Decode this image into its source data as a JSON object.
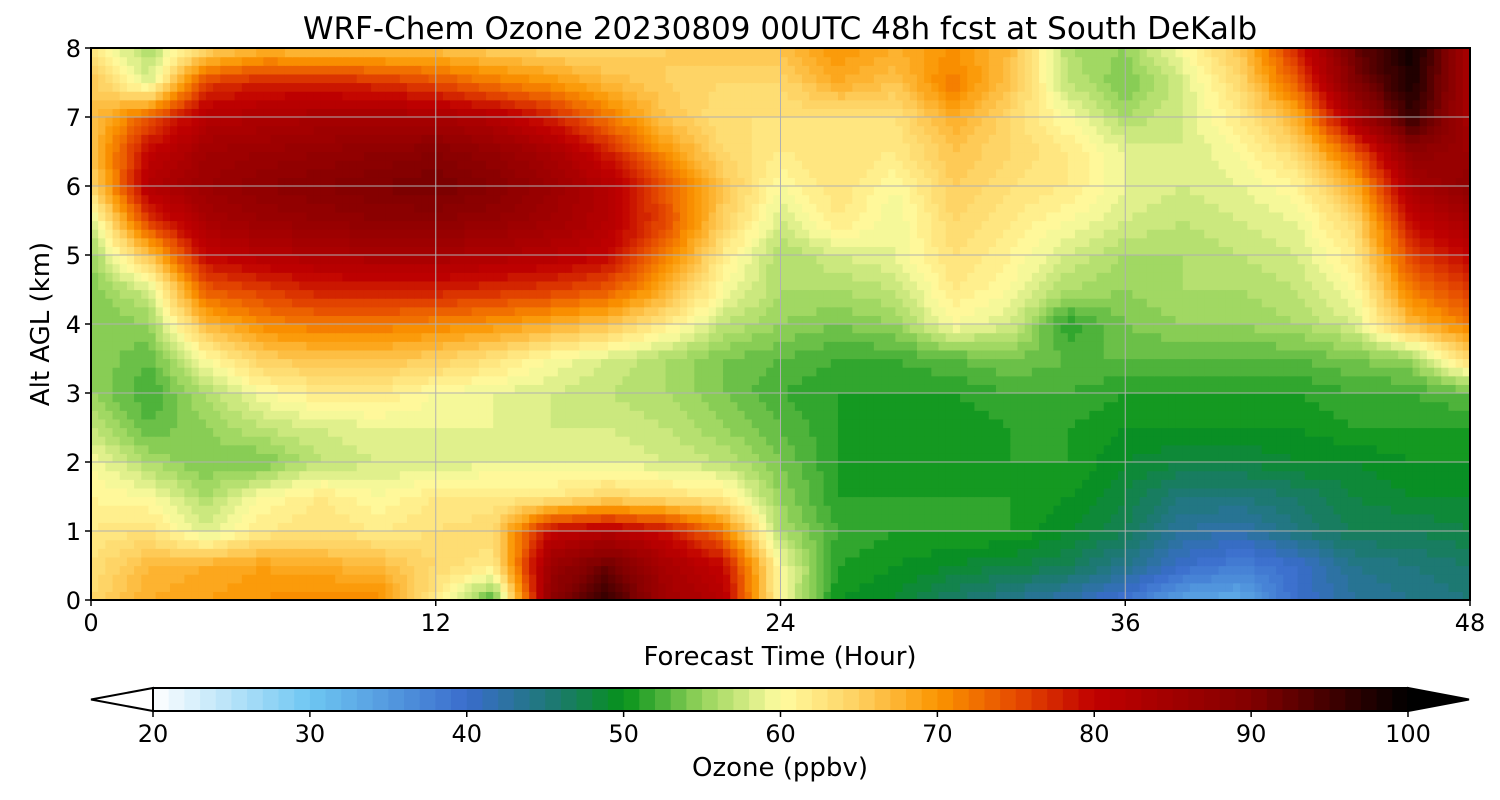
{
  "chart_data": {
    "type": "heatmap",
    "title": "WRF-Chem Ozone  20230809 00UTC 48h fcst at South DeKalb",
    "xlabel": "Forecast Time (Hour)",
    "ylabel": "Alt AGL (km)",
    "xlim": [
      0,
      48
    ],
    "ylim": [
      0,
      8
    ],
    "xticks": [
      0,
      12,
      24,
      36,
      48
    ],
    "yticks": [
      0,
      1,
      2,
      3,
      4,
      5,
      6,
      7,
      8
    ],
    "grid": true,
    "x_hours": [
      0,
      2,
      4,
      6,
      8,
      10,
      12,
      14,
      16,
      18,
      20,
      22,
      24,
      26,
      28,
      30,
      32,
      34,
      36,
      38,
      40,
      42,
      44,
      46,
      48
    ],
    "y_km": [
      0,
      0.5,
      1,
      1.5,
      2,
      2.5,
      3,
      3.5,
      4,
      4.5,
      5,
      5.5,
      6,
      6.5,
      7,
      7.5,
      8
    ],
    "ozone_ppbv": [
      [
        64,
        68,
        69,
        70,
        71,
        71,
        62,
        52,
        88,
        96,
        85,
        82,
        60,
        50,
        49,
        46,
        44,
        42,
        39,
        34,
        33,
        40,
        43,
        44,
        45
      ],
      [
        63,
        67,
        68,
        69,
        68,
        67,
        64,
        62,
        86,
        92,
        84,
        80,
        60,
        51,
        50,
        49,
        48,
        47,
        44,
        40,
        38,
        40,
        44,
        45,
        46
      ],
      [
        62,
        63,
        58,
        62,
        63,
        62,
        63,
        64,
        80,
        82,
        79,
        72,
        56,
        52,
        51,
        51,
        51,
        49,
        47,
        43,
        42,
        45,
        47,
        47,
        48
      ],
      [
        61,
        60,
        56,
        60,
        62,
        60,
        62,
        62,
        62,
        64,
        63,
        62,
        55,
        51,
        51,
        51,
        51,
        50,
        48,
        45,
        45,
        46,
        48,
        49,
        49
      ],
      [
        60,
        56,
        54,
        54,
        57,
        58,
        58,
        59,
        59,
        59,
        58,
        57,
        54,
        51,
        50,
        50,
        51,
        51,
        49,
        48,
        48,
        49,
        49,
        50,
        50
      ],
      [
        57,
        53,
        55,
        57,
        58,
        59,
        59,
        59,
        58,
        58,
        57,
        55,
        53,
        51,
        50,
        50,
        51,
        51,
        50,
        50,
        50,
        50,
        51,
        51,
        51
      ],
      [
        55,
        52,
        56,
        60,
        62,
        62,
        60,
        59,
        58,
        57,
        56,
        54,
        52,
        51,
        51,
        51,
        52,
        52,
        51,
        51,
        51,
        51,
        52,
        52,
        53
      ],
      [
        55,
        53,
        60,
        65,
        66,
        66,
        65,
        63,
        60,
        58,
        56,
        54,
        53,
        52,
        52,
        53,
        54,
        53,
        53,
        53,
        53,
        53,
        54,
        55,
        64
      ],
      [
        54,
        55,
        67,
        71,
        72,
        72,
        71,
        70,
        68,
        66,
        62,
        57,
        55,
        54,
        55,
        60,
        58,
        51,
        54,
        55,
        55,
        56,
        58,
        67,
        72
      ],
      [
        54,
        58,
        74,
        76,
        78,
        78,
        78,
        77,
        76,
        74,
        68,
        60,
        56,
        56,
        57,
        62,
        60,
        56,
        55,
        56,
        56,
        57,
        60,
        72,
        76
      ],
      [
        55,
        66,
        80,
        82,
        83,
        84,
        84,
        83,
        82,
        80,
        72,
        62,
        56,
        58,
        59,
        63,
        61,
        58,
        56,
        56,
        57,
        58,
        62,
        76,
        80
      ],
      [
        58,
        76,
        84,
        86,
        87,
        88,
        88,
        87,
        85,
        82,
        75,
        65,
        58,
        62,
        59,
        64,
        62,
        60,
        58,
        57,
        58,
        59,
        64,
        80,
        84
      ],
      [
        64,
        82,
        86,
        88,
        89,
        90,
        91,
        89,
        86,
        82,
        74,
        66,
        60,
        63,
        60,
        65,
        63,
        62,
        59,
        58,
        59,
        61,
        68,
        84,
        88
      ],
      [
        66,
        80,
        85,
        86,
        87,
        88,
        89,
        87,
        84,
        78,
        70,
        64,
        62,
        63,
        62,
        66,
        64,
        62,
        59,
        58,
        60,
        64,
        74,
        88,
        86
      ],
      [
        66,
        74,
        82,
        83,
        84,
        84,
        84,
        82,
        78,
        72,
        66,
        63,
        63,
        63,
        63,
        68,
        64,
        60,
        56,
        58,
        62,
        68,
        84,
        96,
        84
      ],
      [
        66,
        58,
        76,
        78,
        78,
        77,
        75,
        72,
        70,
        67,
        65,
        64,
        64,
        68,
        66,
        72,
        66,
        57,
        54,
        58,
        64,
        74,
        90,
        98,
        84
      ],
      [
        62,
        56,
        64,
        67,
        66,
        66,
        66,
        65,
        64,
        64,
        65,
        66,
        66,
        70,
        68,
        70,
        67,
        56,
        55,
        60,
        66,
        78,
        92,
        99,
        84
      ]
    ],
    "colorbar": {
      "label": "Ozone  (ppbv)",
      "range": [
        20,
        100
      ],
      "step": 1,
      "extend": "both",
      "ticks": [
        20,
        30,
        40,
        50,
        60,
        70,
        80,
        90,
        100
      ],
      "color_stops": [
        {
          "v": 20,
          "c": "#ffffff"
        },
        {
          "v": 30,
          "c": "#6ec6f2"
        },
        {
          "v": 40,
          "c": "#3a6ccc"
        },
        {
          "v": 46,
          "c": "#1a7a6a"
        },
        {
          "v": 50,
          "c": "#06921a"
        },
        {
          "v": 55,
          "c": "#96d45c"
        },
        {
          "v": 60,
          "c": "#fffca0"
        },
        {
          "v": 65,
          "c": "#fed060"
        },
        {
          "v": 70,
          "c": "#fb9500"
        },
        {
          "v": 75,
          "c": "#e64a00"
        },
        {
          "v": 80,
          "c": "#c00000"
        },
        {
          "v": 90,
          "c": "#820000"
        },
        {
          "v": 100,
          "c": "#000000"
        }
      ]
    }
  }
}
